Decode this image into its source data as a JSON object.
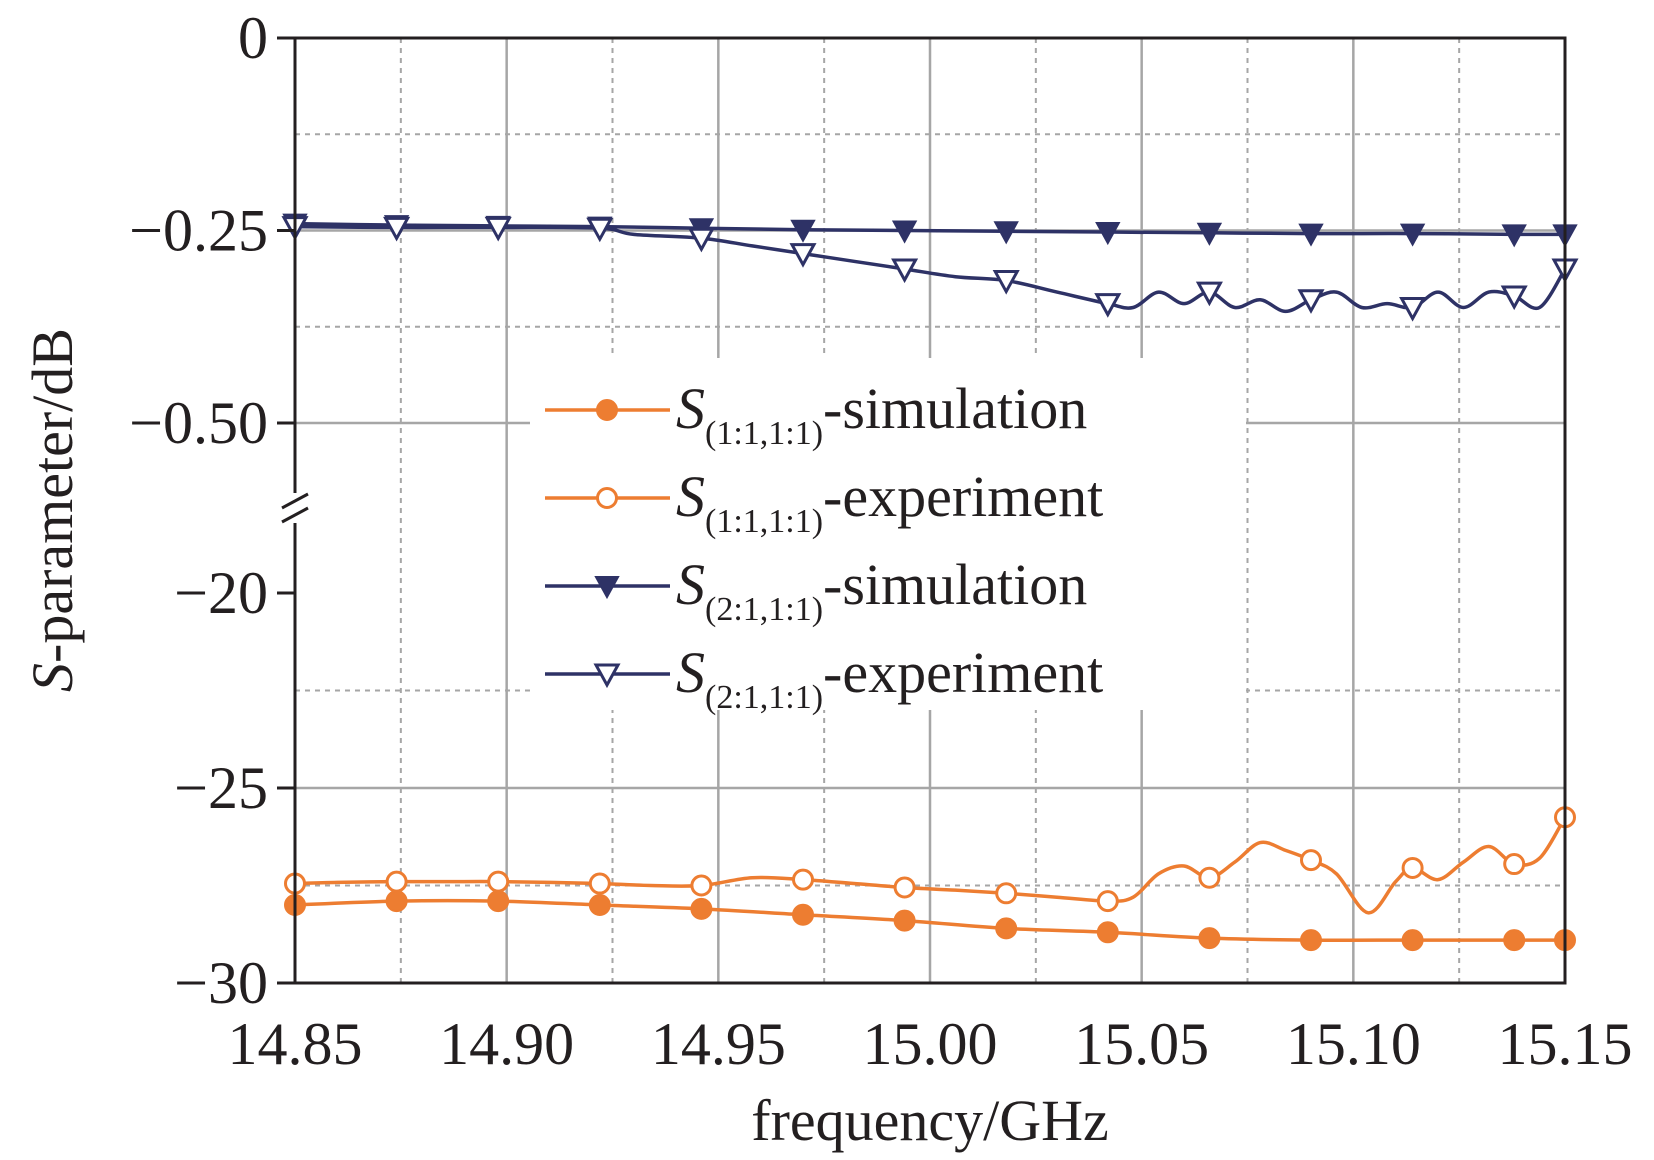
{
  "chart_data": {
    "type": "line",
    "xlabel": "frequency/GHz",
    "ylabel_symbol": "S",
    "ylabel_rest": "-parameter/dB",
    "x_ticks": [
      "14.85",
      "14.90",
      "14.95",
      "15.00",
      "15.05",
      "15.10",
      "15.15"
    ],
    "xlim": [
      14.85,
      15.15
    ],
    "y_ticks_upper": [
      "0",
      "−0.25",
      "−0.50"
    ],
    "y_ticks_lower": [
      "−20",
      "−25",
      "−30"
    ],
    "y_axis_break": true,
    "ylim_upper": [
      -0.5,
      0
    ],
    "ylim_lower": [
      -30,
      -20
    ],
    "grid": true,
    "legend_position": "center",
    "colors": {
      "orange": "#ed7d31",
      "navy": "#2e3266",
      "grid": "#a6a6a6",
      "axis": "#231f20"
    },
    "series": [
      {
        "name": "S(1:1,1:1)-simulation",
        "legend_symbol": "S",
        "legend_sub": "(1:1,1:1)",
        "legend_suffix": "-simulation",
        "color": "#ed7d31",
        "marker": "filled-circle",
        "panel": "lower",
        "x": [
          14.85,
          14.874,
          14.898,
          14.922,
          14.946,
          14.97,
          14.994,
          15.018,
          15.042,
          15.066,
          15.09,
          15.114,
          15.138,
          15.15
        ],
        "values": [
          -28.0,
          -27.9,
          -27.9,
          -28.0,
          -28.1,
          -28.25,
          -28.4,
          -28.6,
          -28.7,
          -28.85,
          -28.9,
          -28.9,
          -28.9,
          -28.9
        ]
      },
      {
        "name": "S(1:1,1:1)-experiment",
        "legend_symbol": "S",
        "legend_sub": "(1:1,1:1)",
        "legend_suffix": "-experiment",
        "color": "#ed7d31",
        "marker": "open-circle",
        "panel": "lower",
        "x": [
          14.85,
          14.86,
          14.874,
          14.886,
          14.898,
          14.91,
          14.922,
          14.934,
          14.946,
          14.958,
          14.97,
          14.982,
          14.994,
          15.006,
          15.018,
          15.03,
          15.042,
          15.048,
          15.054,
          15.06,
          15.066,
          15.072,
          15.078,
          15.084,
          15.09,
          15.096,
          15.1035,
          15.11,
          15.114,
          15.12,
          15.126,
          15.132,
          15.138,
          15.144,
          15.15
        ],
        "values": [
          -27.45,
          -27.42,
          -27.4,
          -27.4,
          -27.4,
          -27.42,
          -27.45,
          -27.5,
          -27.5,
          -27.3,
          -27.35,
          -27.45,
          -27.55,
          -27.62,
          -27.7,
          -27.8,
          -27.9,
          -27.8,
          -27.2,
          -27.0,
          -27.3,
          -26.9,
          -26.4,
          -26.6,
          -26.85,
          -27.2,
          -28.2,
          -27.4,
          -27.05,
          -27.35,
          -26.9,
          -26.5,
          -26.95,
          -26.8,
          -25.75
        ]
      },
      {
        "name": "S(2:1,1:1)-simulation",
        "legend_symbol": "S",
        "legend_sub": "(2:1,1:1)",
        "legend_suffix": "-simulation",
        "color": "#2e3266",
        "marker": "filled-triangle-down",
        "panel": "upper",
        "x": [
          14.85,
          14.874,
          14.898,
          14.922,
          14.946,
          14.97,
          14.994,
          15.018,
          15.042,
          15.066,
          15.09,
          15.114,
          15.138,
          15.15
        ],
        "values": [
          -0.241,
          -0.243,
          -0.244,
          -0.245,
          -0.247,
          -0.249,
          -0.25,
          -0.251,
          -0.252,
          -0.253,
          -0.254,
          -0.254,
          -0.255,
          -0.255
        ]
      },
      {
        "name": "S(2:1,1:1)-experiment",
        "legend_symbol": "S",
        "legend_sub": "(2:1,1:1)",
        "legend_suffix": "-experiment",
        "color": "#2e3266",
        "marker": "open-triangle-down",
        "panel": "upper",
        "x": [
          14.85,
          14.874,
          14.898,
          14.922,
          14.93,
          14.946,
          14.958,
          14.97,
          14.982,
          14.994,
          15.006,
          15.018,
          15.03,
          15.042,
          15.048,
          15.054,
          15.06,
          15.066,
          15.072,
          15.078,
          15.084,
          15.09,
          15.096,
          15.102,
          15.108,
          15.114,
          15.12,
          15.126,
          15.132,
          15.138,
          15.144,
          15.15
        ],
        "values": [
          -0.245,
          -0.246,
          -0.246,
          -0.247,
          -0.255,
          -0.26,
          -0.27,
          -0.28,
          -0.29,
          -0.3,
          -0.31,
          -0.315,
          -0.33,
          -0.345,
          -0.35,
          -0.33,
          -0.345,
          -0.33,
          -0.35,
          -0.34,
          -0.355,
          -0.34,
          -0.33,
          -0.35,
          -0.345,
          -0.35,
          -0.33,
          -0.35,
          -0.33,
          -0.335,
          -0.35,
          -0.3
        ]
      }
    ]
  }
}
